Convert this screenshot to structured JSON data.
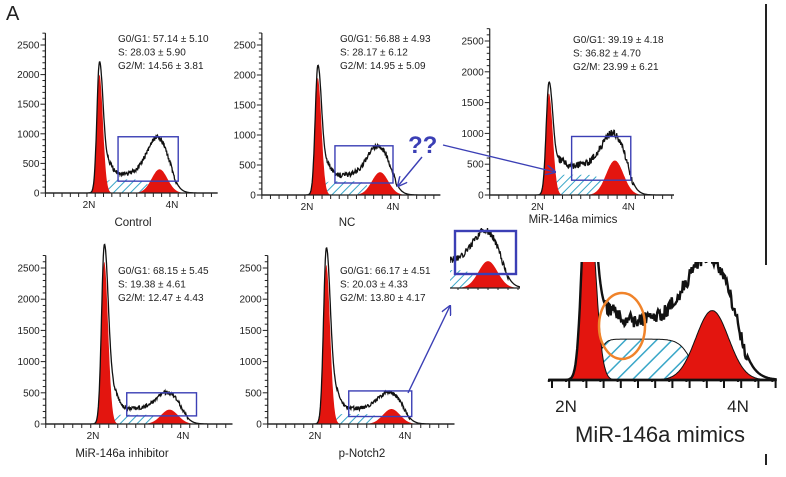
{
  "figure": {
    "panel_letter": "A",
    "question_marks": "??",
    "colors": {
      "peak_red": "#e3150f",
      "hatch_cyan": "#3aa7c8",
      "box_blue": "#3b3fb5",
      "trace": "#111111",
      "circle_orange": "#f0832a"
    },
    "inset_large_title": "MiR-146a mimics",
    "inset_large_x_labels": [
      "2N",
      "4N"
    ]
  },
  "chart_data": [
    {
      "type": "area",
      "title": "Control",
      "y_ticks": [
        0,
        500,
        1000,
        1500,
        2000,
        2500
      ],
      "x_labels": [
        "2N",
        "4N"
      ],
      "ylim": [
        0,
        2700
      ],
      "stats": [
        "G0/G1:  57.14 ± 5.10",
        "S:  28.03 ± 5.90",
        "G2/M:  14.56 ± 3.81"
      ],
      "g1_peak": 2000,
      "g2_fit_peak": 400,
      "g2_trace_peak": 850,
      "s_fit_level": 230,
      "s_trace_level": 320,
      "box": {
        "x": [
          2.7,
          4.15
        ],
        "y": [
          200,
          950
        ]
      }
    },
    {
      "type": "area",
      "title": "NC",
      "y_ticks": [
        0,
        500,
        1000,
        1500,
        2000,
        2500
      ],
      "x_labels": [
        "2N",
        "4N"
      ],
      "ylim": [
        0,
        2700
      ],
      "stats": [
        "G0/G1:  56.88 ± 4.93",
        "S:  28.17 ± 6.12",
        "G2/M:  14.95 ± 5.09"
      ],
      "g1_peak": 1950,
      "g2_fit_peak": 380,
      "g2_trace_peak": 720,
      "s_fit_level": 230,
      "s_trace_level": 330,
      "box": {
        "x": [
          2.65,
          4.0
        ],
        "y": [
          200,
          820
        ]
      }
    },
    {
      "type": "area",
      "title": "MiR-146a mimics",
      "y_ticks": [
        0,
        500,
        1000,
        1500,
        2000,
        2500
      ],
      "x_labels": [
        "2N",
        "4N"
      ],
      "ylim": [
        0,
        2700
      ],
      "stats": [
        "G0/G1:  39.19 ± 4.18",
        "S:  36.82 ± 4.70",
        "G2/M:  23.99 ± 6.21"
      ],
      "g1_peak": 1650,
      "g2_fit_peak": 560,
      "g2_trace_peak": 860,
      "s_fit_level": 330,
      "s_trace_level": 480,
      "box": {
        "x": [
          2.75,
          4.05
        ],
        "y": [
          240,
          950
        ]
      }
    },
    {
      "type": "area",
      "title": "MiR-146a inhibitor",
      "y_ticks": [
        0,
        500,
        1000,
        1500,
        2000,
        2500
      ],
      "x_labels": [
        "2N",
        "4N"
      ],
      "ylim": [
        0,
        2700
      ],
      "stats": [
        "G0/G1:  68.15 ± 5.45",
        "S:  19.38 ± 4.61",
        "G2/M:  12.47 ± 4.43"
      ],
      "g1_peak": 2600,
      "g2_fit_peak": 230,
      "g2_trace_peak": 430,
      "s_fit_level": 150,
      "s_trace_level": 250,
      "box": {
        "x": [
          2.75,
          4.3
        ],
        "y": [
          130,
          500
        ]
      }
    },
    {
      "type": "area",
      "title": "p-Notch2",
      "y_ticks": [
        0,
        500,
        1000,
        1500,
        2000,
        2500
      ],
      "x_labels": [
        "2N",
        "4N"
      ],
      "ylim": [
        0,
        2700
      ],
      "stats": [
        "G0/G1:  66.17 ± 4.51",
        "S:  20.03 ± 4.33",
        "G2/M:  13.80 ± 4.17"
      ],
      "g1_peak": 2550,
      "g2_fit_peak": 240,
      "g2_trace_peak": 440,
      "s_fit_level": 160,
      "s_trace_level": 250,
      "box": {
        "x": [
          2.75,
          4.15
        ],
        "y": [
          120,
          530
        ]
      }
    }
  ]
}
